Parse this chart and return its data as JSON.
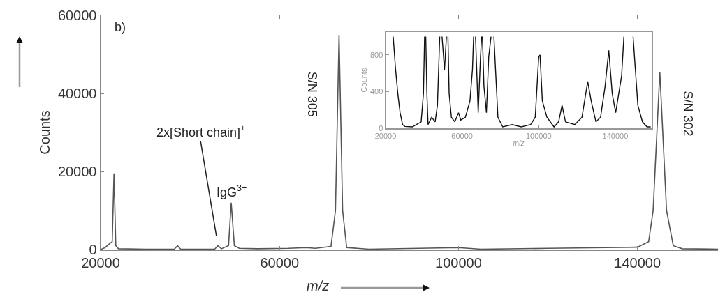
{
  "chart_data": [
    {
      "type": "line",
      "xlabel": "m/z",
      "ylabel": "Counts",
      "xlim": [
        20000,
        158000
      ],
      "ylim": [
        0,
        60000
      ],
      "xticks": [
        20000,
        60000,
        100000,
        140000
      ],
      "yticks": [
        0,
        20000,
        40000,
        60000
      ],
      "annotations": [
        "b)",
        {
          "text": "2x[Short chain]$^{+}$",
          "x": 46250,
          "y": 1000
        },
        {
          "text": "IgG$^{3+}$",
          "x": 49200,
          "y": 12000
        },
        "S/N 305",
        "S/N 302"
      ],
      "series": [
        {
          "color": "#555555",
          "x": [
            20000,
            21000,
            22000,
            22600,
            23000,
            23400,
            24000,
            30000,
            36500,
            37200,
            37900,
            45500,
            46250,
            47000,
            48600,
            49200,
            49900,
            51000,
            55000,
            62000,
            66000,
            68000,
            71500,
            72500,
            73300,
            74100,
            75000,
            80000,
            100000,
            105000,
            120000,
            133000,
            140000,
            142500,
            143500,
            145000,
            146500,
            148000,
            150000,
            158000
          ],
          "values": [
            0,
            500,
            1500,
            2000,
            19500,
            1000,
            200,
            100,
            100,
            1000,
            100,
            100,
            1000,
            200,
            1000,
            12000,
            1000,
            300,
            200,
            300,
            500,
            300,
            800,
            10000,
            55000,
            10000,
            500,
            100,
            500,
            100,
            300,
            500,
            600,
            2000,
            10000,
            45500,
            10000,
            1000,
            200,
            100
          ]
        }
      ]
    },
    {
      "type": "line",
      "xlabel": "m/z",
      "ylabel": "Counts",
      "xlim": [
        20000,
        159000
      ],
      "ylim": [
        0,
        1050
      ],
      "xticks": [
        20000,
        60000,
        100000,
        140000
      ],
      "yticks": [
        0,
        400,
        800
      ],
      "series": [
        {
          "color": "#111111",
          "x": [
            24000,
            25200,
            26400,
            27600,
            28900,
            30100,
            34000,
            38600,
            39800,
            40400,
            40700,
            41000,
            41600,
            42200,
            44100,
            45900,
            47100,
            48300,
            49000,
            49500,
            50800,
            51800,
            52200,
            52600,
            53200,
            54400,
            56200,
            58100,
            59300,
            61700,
            64100,
            65400,
            66000,
            66500,
            67000,
            68400,
            69600,
            70200,
            70400,
            70600,
            71400,
            72700,
            73900,
            75100,
            75800,
            76600,
            78700,
            81200,
            86100,
            90900,
            95800,
            98200,
            100000,
            100700,
            101900,
            104300,
            108000,
            110400,
            112200,
            114000,
            118900,
            122600,
            125600,
            127400,
            129900,
            132300,
            134700,
            136600,
            138400,
            140200,
            143300,
            144500,
            147000,
            149300,
            151800,
            154200,
            156600,
            158500
          ],
          "values": [
            1000,
            650,
            380,
            170,
            40,
            20,
            15,
            70,
            380,
            1000,
            null,
            1000,
            380,
            40,
            120,
            70,
            250,
            1000,
            null,
            1000,
            640,
            1000,
            null,
            1000,
            380,
            120,
            70,
            170,
            90,
            120,
            300,
            640,
            1000,
            null,
            1000,
            170,
            780,
            1000,
            null,
            1000,
            460,
            170,
            780,
            1000,
            null,
            1000,
            120,
            15,
            40,
            15,
            40,
            120,
            780,
            800,
            300,
            120,
            15,
            70,
            250,
            70,
            40,
            120,
            510,
            300,
            70,
            120,
            460,
            850,
            380,
            170,
            570,
            1000,
            null,
            1000,
            250,
            70,
            15,
            15
          ]
        }
      ]
    }
  ]
}
